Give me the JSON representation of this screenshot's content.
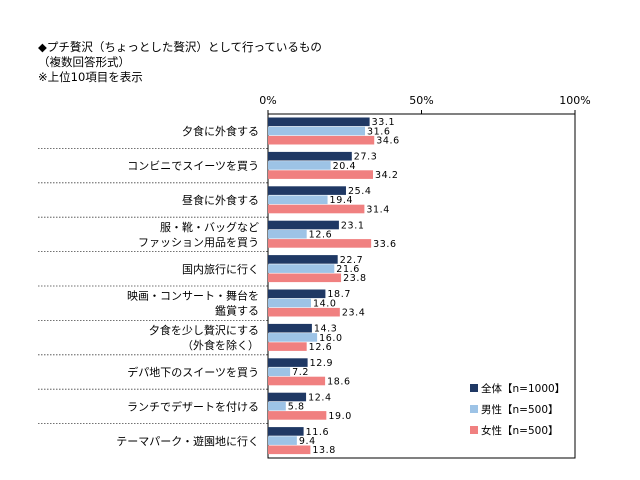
{
  "header": {
    "title": "◆プチ贅沢（ちょっとした贅沢）として行っているもの",
    "subtitle": "（複数回答形式）",
    "note": "※上位10項目を表示"
  },
  "chart_data": {
    "type": "bar",
    "orientation": "horizontal",
    "xlim": [
      0,
      100
    ],
    "ticks": [
      "0%",
      "50%",
      "100%"
    ],
    "tick_values": [
      0,
      50,
      100
    ],
    "categories": [
      [
        "夕食に外食する"
      ],
      [
        "コンビニでスイーツを買う"
      ],
      [
        "昼食に外食する"
      ],
      [
        "服・靴・バッグなど",
        "ファッション用品を買う"
      ],
      [
        "国内旅行に行く"
      ],
      [
        "映画・コンサート・舞台を",
        "鑑賞する"
      ],
      [
        "夕食を少し贅沢にする",
        "（外食を除く）"
      ],
      [
        "デパ地下のスイーツを買う"
      ],
      [
        "ランチでデザートを付ける"
      ],
      [
        "テーマパーク・遊園地に行く"
      ]
    ],
    "series": [
      {
        "name": "全体【n=1000】",
        "color": "#1f3864",
        "values": [
          33.1,
          27.3,
          25.4,
          23.1,
          22.7,
          18.7,
          14.3,
          12.9,
          12.4,
          11.6
        ]
      },
      {
        "name": "男性【n=500】",
        "color": "#9dc3e6",
        "values": [
          31.6,
          20.4,
          19.4,
          12.6,
          21.6,
          14.0,
          16.0,
          7.2,
          5.8,
          9.4
        ]
      },
      {
        "name": "女性【n=500】",
        "color": "#f08080",
        "values": [
          34.6,
          34.2,
          31.4,
          33.6,
          23.8,
          23.4,
          12.6,
          18.6,
          19.0,
          13.8
        ]
      }
    ],
    "grid": false,
    "legend_position": "bottom-right"
  }
}
